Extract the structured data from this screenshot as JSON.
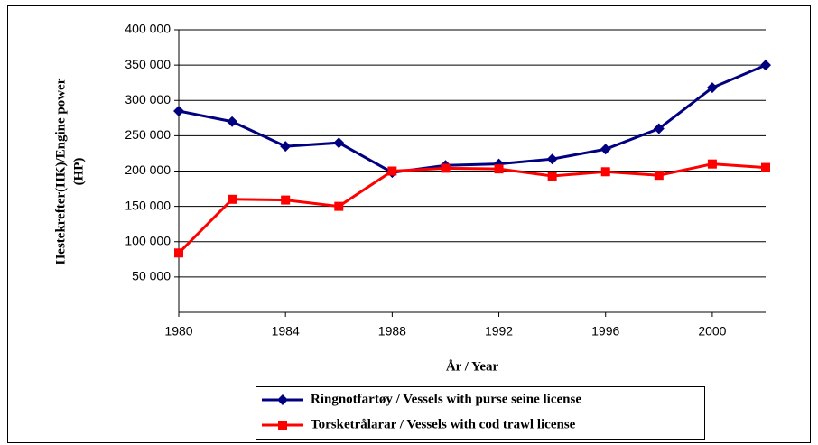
{
  "chart_data": {
    "type": "line",
    "ylabel": [
      "Hestekrefter(HK)/Engine power",
      "(HP)"
    ],
    "xlabel": "År / Year",
    "x": [
      1980,
      1982,
      1984,
      1986,
      1988,
      1990,
      1992,
      1994,
      1996,
      1998,
      2000,
      2002
    ],
    "xlim": [
      1980,
      2002
    ],
    "xticks": [
      1980,
      1984,
      1988,
      1992,
      1996,
      2000
    ],
    "ylim": [
      0,
      400000
    ],
    "yticks": [
      {
        "value": 50000,
        "label": "50 000"
      },
      {
        "value": 100000,
        "label": "100 000"
      },
      {
        "value": 150000,
        "label": "150 000"
      },
      {
        "value": 200000,
        "label": "200 000"
      },
      {
        "value": 250000,
        "label": "250 000"
      },
      {
        "value": 300000,
        "label": "300 000"
      },
      {
        "value": 350000,
        "label": "350 000"
      },
      {
        "value": 400000,
        "label": "400 000"
      }
    ],
    "grid": true,
    "legend": "bottom",
    "series": [
      {
        "name": "Ringnotfartøy / Vessels with purse seine license",
        "color": "#000080",
        "marker": "diamond",
        "values": [
          285000,
          270000,
          235000,
          240000,
          198000,
          208000,
          210000,
          217000,
          231000,
          260000,
          318000,
          350000
        ]
      },
      {
        "name": "Torsketrålarar / Vessels with cod trawl license",
        "color": "#ff0000",
        "marker": "square",
        "values": [
          84000,
          160000,
          159000,
          150000,
          200000,
          204000,
          203000,
          193000,
          199000,
          194000,
          210000,
          205000
        ]
      }
    ]
  }
}
